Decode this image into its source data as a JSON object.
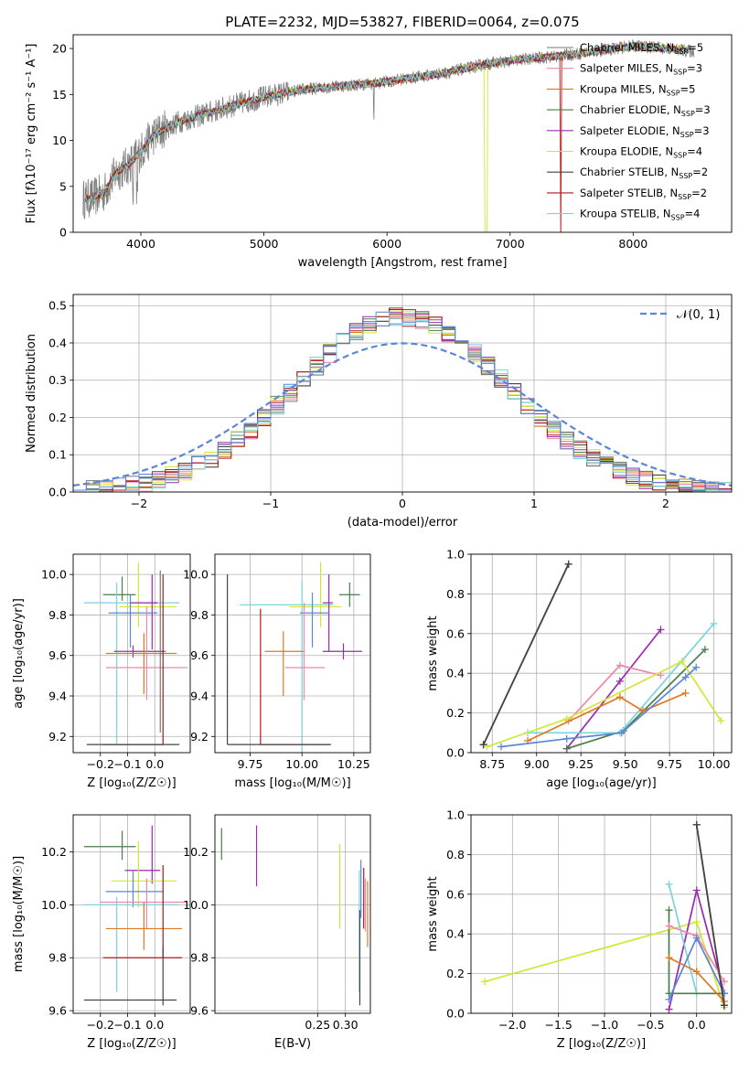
{
  "colors": {
    "Chabrier MILES": "#777777",
    "Salpeter MILES": "#ee88aa",
    "Kroupa MILES": "#e07820",
    "Chabrier ELODIE": "#4a7d4a",
    "Salpeter ELODIE": "#9a2ab0",
    "Kroupa ELODIE": "#d2e635",
    "Chabrier STELIB": "#444444",
    "Salpeter STELIB": "#b01818",
    "Kroupa STELIB": "#7ad4de",
    "extra": "#5b86d6",
    "grid": "#b0b0b0"
  },
  "chart_data": [
    {
      "id": "spectrum",
      "type": "line",
      "title": "PLATE=2232, MJD=53827, FIBERID=0064, z=0.075",
      "xlabel": "wavelength [Angstrom, rest frame]",
      "ylabel": "Flux [fλ10⁻¹⁷ erg cm⁻² s⁻¹ A⁻¹]",
      "xlim": [
        3450,
        8800
      ],
      "ylim": [
        0,
        21.5
      ],
      "xticks": [
        4000,
        5000,
        6000,
        7000,
        8000
      ],
      "yticks": [
        0,
        5,
        10,
        15,
        20
      ],
      "grid": false,
      "legend_position": "top-right",
      "continuum": {
        "x": [
          3520,
          3600,
          3700,
          3800,
          3900,
          4000,
          4100,
          4300,
          4500,
          4800,
          5000,
          5300,
          5600,
          5900,
          6200,
          6500,
          6800,
          7100,
          7400,
          7700,
          8000,
          8300,
          8600
        ],
        "y": [
          3.6,
          3.7,
          4.3,
          6.5,
          7.3,
          8.8,
          10.5,
          12.0,
          12.8,
          14.0,
          14.7,
          15.5,
          15.9,
          16.2,
          16.8,
          17.4,
          18.3,
          18.8,
          19.2,
          19.7,
          20.3,
          20.0,
          19.5
        ]
      },
      "series": [
        {
          "name": "Chabrier MILES, N_SSP=5",
          "legend_text": "Chabrier MILES, N",
          "legend_sub": "SSP",
          "legend_tail": "=5"
        },
        {
          "name": "Salpeter MILES, N_SSP=3",
          "legend_text": "Salpeter MILES, N",
          "legend_sub": "SSP",
          "legend_tail": "=3"
        },
        {
          "name": "Kroupa MILES, N_SSP=5",
          "legend_text": "Kroupa MILES, N",
          "legend_sub": "SSP",
          "legend_tail": "=5"
        },
        {
          "name": "Chabrier ELODIE, N_SSP=3",
          "legend_text": "Chabrier ELODIE, N",
          "legend_sub": "SSP",
          "legend_tail": "=3"
        },
        {
          "name": "Salpeter ELODIE, N_SSP=3",
          "legend_text": "Salpeter ELODIE, N",
          "legend_sub": "SSP",
          "legend_tail": "=3"
        },
        {
          "name": "Kroupa ELODIE, N_SSP=4",
          "legend_text": "Kroupa ELODIE, N",
          "legend_sub": "SSP",
          "legend_tail": "=4"
        },
        {
          "name": "Chabrier STELIB, N_SSP=2",
          "legend_text": "Chabrier STELIB, N",
          "legend_sub": "SSP",
          "legend_tail": "=2"
        },
        {
          "name": "Salpeter STELIB, N_SSP=2",
          "legend_text": "Salpeter STELIB, N",
          "legend_sub": "SSP",
          "legend_tail": "=2"
        },
        {
          "name": "Kroupa STELIB, N_SSP=4",
          "legend_text": "Kroupa STELIB, N",
          "legend_sub": "SSP",
          "legend_tail": "=4"
        }
      ]
    },
    {
      "id": "residuals",
      "type": "line",
      "xlabel": "(data-model)/error",
      "ylabel": "Normed distribution",
      "xlim": [
        -2.5,
        2.5
      ],
      "ylim": [
        0,
        0.53
      ],
      "xticks": [
        -2,
        -1,
        0,
        1,
        2
      ],
      "yticks": [
        0.0,
        0.1,
        0.2,
        0.3,
        0.4,
        0.5
      ],
      "grid": true,
      "legend_position": "top-right",
      "reference": {
        "name": "𝒩(0,1)",
        "label": "𝒩(0, 1)",
        "mean": 0,
        "sigma": 1
      },
      "histogram_bins": {
        "start": -2.5,
        "width": 0.1,
        "count": 50
      }
    },
    {
      "id": "age_vs_Z",
      "type": "scatter",
      "xlabel": "Z [log₁₀(Z/Z☉)]",
      "ylabel": "age  [log₁₀(age/yr)]",
      "xlim": [
        -0.3,
        0.13
      ],
      "ylim": [
        9.12,
        10.1
      ],
      "xticks": [
        -0.2,
        -0.1,
        0.0
      ],
      "yticks": [
        9.2,
        9.4,
        9.6,
        9.8,
        10.0
      ],
      "grid": true,
      "points": [
        {
          "c": "Chabrier ELODIE",
          "x": -0.12,
          "y": 9.9,
          "xerr": [
            0.07,
            0.05
          ],
          "yerr": [
            0.03,
            0.09
          ]
        },
        {
          "c": "Kroupa STELIB",
          "x": -0.14,
          "y": 9.86,
          "xerr": [
            0.12,
            0.23
          ],
          "yerr": [
            0.7,
            0.1
          ]
        },
        {
          "c": "Kroupa ELODIE",
          "x": -0.06,
          "y": 9.84,
          "xerr": [
            0.07,
            0.14
          ],
          "yerr": [
            0.1,
            0.22
          ]
        },
        {
          "c": "Salpeter ELODIE",
          "x": -0.01,
          "y": 9.86,
          "xerr": [
            0.08,
            0.02
          ],
          "yerr": [
            0.23,
            0.14
          ]
        },
        {
          "c": "extra",
          "x": -0.09,
          "y": 9.81,
          "xerr": [
            0.08,
            0.1
          ],
          "yerr": [
            0.17,
            0.09
          ]
        },
        {
          "c": "Salpeter ELODIE",
          "x": -0.08,
          "y": 9.62,
          "xerr": [
            0.07,
            0.12
          ],
          "yerr": [
            0.03,
            0.03
          ]
        },
        {
          "c": "Kroupa MILES",
          "x": -0.04,
          "y": 9.61,
          "xerr": [
            0.14,
            0.12
          ],
          "yerr": [
            0.2,
            0.1
          ]
        },
        {
          "c": "Salpeter MILES",
          "x": -0.03,
          "y": 9.54,
          "xerr": [
            0.15,
            0.15
          ],
          "yerr": [
            0.16,
            0.3
          ]
        },
        {
          "c": "Chabrier MILES",
          "x": 0.02,
          "y": 9.6,
          "xerr": [
            0.0,
            0.0
          ],
          "yerr": [
            0.38,
            0.42
          ]
        },
        {
          "c": "Salpeter STELIB",
          "x": 0.03,
          "y": 9.16,
          "xerr": [
            0.22,
            0.0
          ],
          "yerr": [
            0.0,
            0.84
          ]
        },
        {
          "c": "Chabrier STELIB",
          "x": 0.03,
          "y": 9.16,
          "xerr": [
            0.28,
            0.06
          ],
          "yerr": [
            0.0,
            0.0
          ]
        }
      ]
    },
    {
      "id": "age_vs_mass",
      "type": "scatter",
      "xlabel": "mass [log₁₀(M/M☉)]",
      "ylabel": "",
      "xlim": [
        9.58,
        10.33
      ],
      "ylim": [
        9.12,
        10.1
      ],
      "xticks": [
        9.75,
        10.0,
        10.25
      ],
      "yticks": [
        9.2,
        9.4,
        9.6,
        9.8,
        10.0
      ],
      "grid": true,
      "points": [
        {
          "c": "Chabrier ELODIE",
          "x": 10.23,
          "y": 9.9,
          "xerr": [
            0.05,
            0.05
          ],
          "yerr": [
            0.06,
            0.06
          ]
        },
        {
          "c": "Kroupa STELIB",
          "x": 10.0,
          "y": 9.85,
          "xerr": [
            0.3,
            0.15
          ],
          "yerr": [
            0.75,
            0.12
          ]
        },
        {
          "c": "Kroupa ELODIE",
          "x": 10.09,
          "y": 9.84,
          "xerr": [
            0.15,
            0.1
          ],
          "yerr": [
            0.1,
            0.22
          ]
        },
        {
          "c": "Salpeter ELODIE",
          "x": 10.13,
          "y": 9.86,
          "xerr": [
            0.03,
            0.02
          ],
          "yerr": [
            0.24,
            0.14
          ]
        },
        {
          "c": "extra",
          "x": 10.05,
          "y": 9.81,
          "xerr": [
            0.06,
            0.08
          ],
          "yerr": [
            0.17,
            0.1
          ]
        },
        {
          "c": "Salpeter ELODIE",
          "x": 10.2,
          "y": 9.62,
          "xerr": [
            0.1,
            0.09
          ],
          "yerr": [
            0.04,
            0.04
          ]
        },
        {
          "c": "Kroupa MILES",
          "x": 9.91,
          "y": 9.62,
          "xerr": [
            0.09,
            0.1
          ],
          "yerr": [
            0.22,
            0.1
          ]
        },
        {
          "c": "Salpeter MILES",
          "x": 10.01,
          "y": 9.54,
          "xerr": [
            0.09,
            0.1
          ],
          "yerr": [
            0.16,
            0.32
          ]
        },
        {
          "c": "Salpeter STELIB",
          "x": 9.8,
          "y": 9.16,
          "xerr": [
            0.0,
            0.33
          ],
          "yerr": [
            0.0,
            0.67
          ]
        },
        {
          "c": "Chabrier STELIB",
          "x": 9.64,
          "y": 9.16,
          "xerr": [
            0.0,
            0.5
          ],
          "yerr": [
            0.0,
            0.84
          ]
        }
      ]
    },
    {
      "id": "mass_weight_vs_age",
      "type": "line",
      "xlabel": "age  [log₁₀(age/yr)]",
      "ylabel": "mass weight",
      "xlim": [
        8.63,
        10.1
      ],
      "ylim": [
        0,
        1.0
      ],
      "xticks": [
        8.75,
        9.0,
        9.25,
        9.5,
        9.75,
        10.0
      ],
      "yticks": [
        0.0,
        0.2,
        0.4,
        0.6,
        0.8,
        1.0
      ],
      "grid": true,
      "series": [
        {
          "c": "Salpeter STELIB",
          "x": [
            8.7,
            9.18
          ],
          "y": [
            0.04,
            0.95
          ]
        },
        {
          "c": "Salpeter ELODIE",
          "x": [
            9.17,
            9.47,
            9.7
          ],
          "y": [
            0.02,
            0.36,
            0.62
          ]
        },
        {
          "c": "Salpeter MILES",
          "x": [
            9.18,
            9.47,
            9.7
          ],
          "y": [
            0.16,
            0.44,
            0.39
          ]
        },
        {
          "c": "Chabrier ELODIE",
          "x": [
            9.17,
            9.49,
            9.95
          ],
          "y": [
            0.02,
            0.11,
            0.52
          ]
        },
        {
          "c": "Kroupa STELIB",
          "x": [
            8.95,
            9.47,
            10.0
          ],
          "y": [
            0.1,
            0.1,
            0.65
          ]
        },
        {
          "c": "Kroupa ELODIE",
          "x": [
            8.72,
            9.17,
            9.82,
            10.04
          ],
          "y": [
            0.03,
            0.17,
            0.46,
            0.16
          ]
        },
        {
          "c": "Kroupa MILES",
          "x": [
            8.95,
            9.47,
            9.6,
            9.84
          ],
          "y": [
            0.06,
            0.28,
            0.21,
            0.3
          ]
        },
        {
          "c": "extra",
          "x": [
            8.8,
            9.17,
            9.48,
            9.84,
            9.9
          ],
          "y": [
            0.03,
            0.07,
            0.1,
            0.38,
            0.43
          ]
        },
        {
          "c": "Chabrier STELIB",
          "x": [
            8.7,
            9.18
          ],
          "y": [
            0.04,
            0.95
          ]
        }
      ]
    },
    {
      "id": "mass_vs_Z",
      "type": "scatter",
      "xlabel": "Z [log₁₀(Z/Z☉)]",
      "ylabel": "mass [log₁₀(M/M☉)]",
      "xlim": [
        -0.3,
        0.13
      ],
      "ylim": [
        9.59,
        10.34
      ],
      "xticks": [
        -0.2,
        -0.1,
        0.0
      ],
      "yticks": [
        9.6,
        9.8,
        10.0,
        10.2
      ],
      "grid": true,
      "points": [
        {
          "c": "Chabrier ELODIE",
          "x": -0.12,
          "y": 10.22,
          "xerr": [
            0.14,
            0.05
          ],
          "yerr": [
            0.05,
            0.06
          ]
        },
        {
          "c": "Salpeter ELODIE",
          "x": -0.01,
          "y": 10.13,
          "xerr": [
            0.1,
            0.03
          ],
          "yerr": [
            0.05,
            0.17
          ]
        },
        {
          "c": "Kroupa ELODIE",
          "x": -0.06,
          "y": 10.09,
          "xerr": [
            0.1,
            0.14
          ],
          "yerr": [
            0.1,
            0.15
          ]
        },
        {
          "c": "extra",
          "x": -0.08,
          "y": 10.05,
          "xerr": [
            0.1,
            0.11
          ],
          "yerr": [
            0.06,
            0.08
          ]
        },
        {
          "c": "Salpeter MILES",
          "x": -0.03,
          "y": 10.01,
          "xerr": [
            0.17,
            0.14
          ],
          "yerr": [
            0.1,
            0.09
          ]
        },
        {
          "c": "Kroupa STELIB",
          "x": -0.14,
          "y": 10.0,
          "xerr": [
            0.12,
            0.23
          ],
          "yerr": [
            0.33,
            0.03
          ]
        },
        {
          "c": "Kroupa MILES",
          "x": -0.04,
          "y": 9.91,
          "xerr": [
            0.14,
            0.14
          ],
          "yerr": [
            0.08,
            0.1
          ]
        },
        {
          "c": "Salpeter STELIB",
          "x": 0.03,
          "y": 9.8,
          "xerr": [
            0.22,
            0.07
          ],
          "yerr": [
            0.0,
            0.35
          ]
        },
        {
          "c": "Chabrier STELIB",
          "x": 0.03,
          "y": 9.64,
          "xerr": [
            0.29,
            0.05
          ],
          "yerr": [
            0.02,
            0.2
          ]
        }
      ]
    },
    {
      "id": "mass_vs_EBV",
      "type": "scatter",
      "xlabel": "E(B-V)",
      "ylabel": "",
      "xlim": [
        0.065,
        0.345
      ],
      "ylim": [
        9.59,
        10.34
      ],
      "xticks": [
        0.25,
        0.3
      ],
      "yticks": [
        9.6,
        9.8,
        10.0,
        10.2
      ],
      "grid": true,
      "points": [
        {
          "c": "Chabrier ELODIE",
          "x": 0.077,
          "y": 10.23,
          "yerr": [
            0.06,
            0.06
          ]
        },
        {
          "c": "Salpeter ELODIE",
          "x": 0.14,
          "y": 10.19,
          "yerr": [
            0.12,
            0.11
          ]
        },
        {
          "c": "Kroupa ELODIE",
          "x": 0.29,
          "y": 10.08,
          "yerr": [
            0.17,
            0.15
          ]
        },
        {
          "c": "Kroupa STELIB",
          "x": 0.325,
          "y": 9.99,
          "yerr": [
            0.32,
            0.14
          ]
        },
        {
          "c": "Chabrier STELIB",
          "x": 0.326,
          "y": 9.82,
          "yerr": [
            0.2,
            0.16
          ]
        },
        {
          "c": "extra",
          "x": 0.328,
          "y": 10.05,
          "yerr": [
            0.1,
            0.12
          ]
        },
        {
          "c": "Salpeter STELIB",
          "x": 0.333,
          "y": 10.01,
          "yerr": [
            0.1,
            0.13
          ]
        },
        {
          "c": "Salpeter MILES",
          "x": 0.336,
          "y": 10.0,
          "yerr": [
            0.1,
            0.1
          ]
        },
        {
          "c": "Kroupa MILES",
          "x": 0.34,
          "y": 9.97,
          "yerr": [
            0.13,
            0.12
          ]
        }
      ]
    },
    {
      "id": "mass_weight_vs_Z",
      "type": "line",
      "xlabel": "Z [log₁₀(Z/Z☉)]",
      "ylabel": "mass weight",
      "xlim": [
        -2.45,
        0.38
      ],
      "ylim": [
        0,
        1.0
      ],
      "xticks": [
        -2.0,
        -1.5,
        -1.0,
        -0.5,
        0.0
      ],
      "yticks": [
        0.0,
        0.2,
        0.4,
        0.6,
        0.8,
        1.0
      ],
      "grid": true,
      "series": [
        {
          "c": "Kroupa ELODIE",
          "x": [
            -2.3,
            0.0,
            0.3
          ],
          "y": [
            0.16,
            0.46,
            0.03
          ]
        },
        {
          "c": "Salpeter STELIB",
          "x": [
            0.0,
            0.3
          ],
          "y": [
            0.95,
            0.04
          ]
        },
        {
          "c": "Salpeter ELODIE",
          "x": [
            -0.3,
            0.0,
            0.3
          ],
          "y": [
            0.02,
            0.62,
            0.1
          ]
        },
        {
          "c": "Kroupa STELIB",
          "x": [
            -0.3,
            0.0,
            0.3
          ],
          "y": [
            0.65,
            0.1,
            0.1
          ]
        },
        {
          "c": "Chabrier ELODIE",
          "x": [
            -0.3,
            -0.3,
            0.3
          ],
          "y": [
            0.52,
            0.1,
            0.1
          ]
        },
        {
          "c": "Salpeter MILES",
          "x": [
            -0.3,
            0.0,
            0.3
          ],
          "y": [
            0.44,
            0.39,
            0.16
          ]
        },
        {
          "c": "Kroupa MILES",
          "x": [
            -0.3,
            0.0,
            0.3
          ],
          "y": [
            0.28,
            0.21,
            0.06
          ]
        },
        {
          "c": "extra",
          "x": [
            -0.3,
            0.0,
            0.3
          ],
          "y": [
            0.07,
            0.38,
            0.1
          ]
        },
        {
          "c": "Chabrier STELIB",
          "x": [
            0.0,
            0.3
          ],
          "y": [
            0.95,
            0.04
          ]
        }
      ]
    }
  ]
}
